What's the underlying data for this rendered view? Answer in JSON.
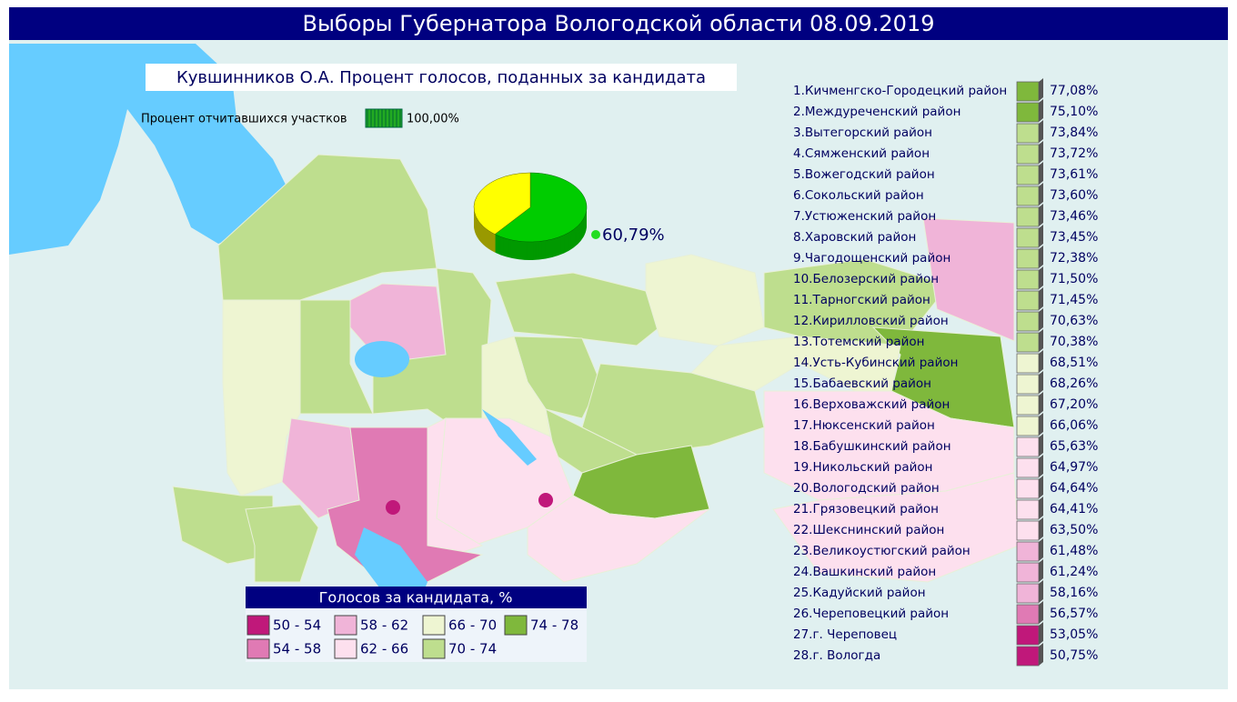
{
  "title": "Выборы Губернатора Вологодской области 08.09.2019",
  "subtitle": "Кувшинников О.А. Процент голосов, поданных за кандидата",
  "reporting": {
    "label": "Процент отчитавшихся участков",
    "value": 100,
    "value_label": "100,00%",
    "color": "#22aa22"
  },
  "pie": {
    "value": 60.79,
    "label": "60,79%",
    "color": "#00cc00",
    "rest_color": "#ffff00"
  },
  "districts": [
    {
      "name": "1.Кичменгско-Городецкий район",
      "value": 77.08,
      "label": "77,08%"
    },
    {
      "name": "2.Междуреченский район",
      "value": 75.1,
      "label": "75,10%"
    },
    {
      "name": "3.Вытегорский район",
      "value": 73.84,
      "label": "73,84%"
    },
    {
      "name": "4.Сямженский район",
      "value": 73.72,
      "label": "73,72%"
    },
    {
      "name": "5.Вожегодский район",
      "value": 73.61,
      "label": "73,61%"
    },
    {
      "name": "6.Сокольский район",
      "value": 73.6,
      "label": "73,60%"
    },
    {
      "name": "7.Устюженский район",
      "value": 73.46,
      "label": "73,46%"
    },
    {
      "name": "8.Харовский район",
      "value": 73.45,
      "label": "73,45%"
    },
    {
      "name": "9.Чагодощенский район",
      "value": 72.38,
      "label": "72,38%"
    },
    {
      "name": "10.Белозерский район",
      "value": 71.5,
      "label": "71,50%"
    },
    {
      "name": "11.Тарногский район",
      "value": 71.45,
      "label": "71,45%"
    },
    {
      "name": "12.Кирилловский район",
      "value": 70.63,
      "label": "70,63%"
    },
    {
      "name": "13.Тотемский район",
      "value": 70.38,
      "label": "70,38%"
    },
    {
      "name": "14.Усть-Кубинский район",
      "value": 68.51,
      "label": "68,51%"
    },
    {
      "name": "15.Бабаевский район",
      "value": 68.26,
      "label": "68,26%"
    },
    {
      "name": "16.Верховажский район",
      "value": 67.2,
      "label": "67,20%"
    },
    {
      "name": "17.Нюксенский район",
      "value": 66.06,
      "label": "66,06%"
    },
    {
      "name": "18.Бабушкинский район",
      "value": 65.63,
      "label": "65,63%"
    },
    {
      "name": "19.Никольский район",
      "value": 64.97,
      "label": "64,97%"
    },
    {
      "name": "20.Вологодский район",
      "value": 64.64,
      "label": "64,64%"
    },
    {
      "name": "21.Грязовецкий район",
      "value": 64.41,
      "label": "64,41%"
    },
    {
      "name": "22.Шекснинский район",
      "value": 63.5,
      "label": "63,50%"
    },
    {
      "name": "23.Великоустюгский район",
      "value": 61.48,
      "label": "61,48%"
    },
    {
      "name": "24.Вашкинский район",
      "value": 61.24,
      "label": "61,24%"
    },
    {
      "name": "25.Кадуйский район",
      "value": 58.16,
      "label": "58,16%"
    },
    {
      "name": "26.Череповецкий район",
      "value": 56.57,
      "label": "56,57%"
    },
    {
      "name": "27.г. Череповец",
      "value": 53.05,
      "label": "53,05%"
    },
    {
      "name": "28.г. Вологда",
      "value": 50.75,
      "label": "50,75%"
    }
  ],
  "legend": {
    "title": "Голосов за кандидата, %",
    "classes": [
      {
        "label": "50 - 54",
        "min": 50,
        "max": 54,
        "color": "#c0187a"
      },
      {
        "label": "54 - 58",
        "min": 54,
        "max": 58,
        "color": "#e07ab4"
      },
      {
        "label": "58 - 62",
        "min": 58,
        "max": 62,
        "color": "#f0b4d8"
      },
      {
        "label": "62 - 66",
        "min": 62,
        "max": 66,
        "color": "#fde0ee"
      },
      {
        "label": "66 - 70",
        "min": 66,
        "max": 70,
        "color": "#eef5d2"
      },
      {
        "label": "70 - 74",
        "min": 70,
        "max": 74,
        "color": "#bede8e"
      },
      {
        "label": "74 - 78",
        "min": 74,
        "max": 78,
        "color": "#7fb83c"
      }
    ]
  }
}
